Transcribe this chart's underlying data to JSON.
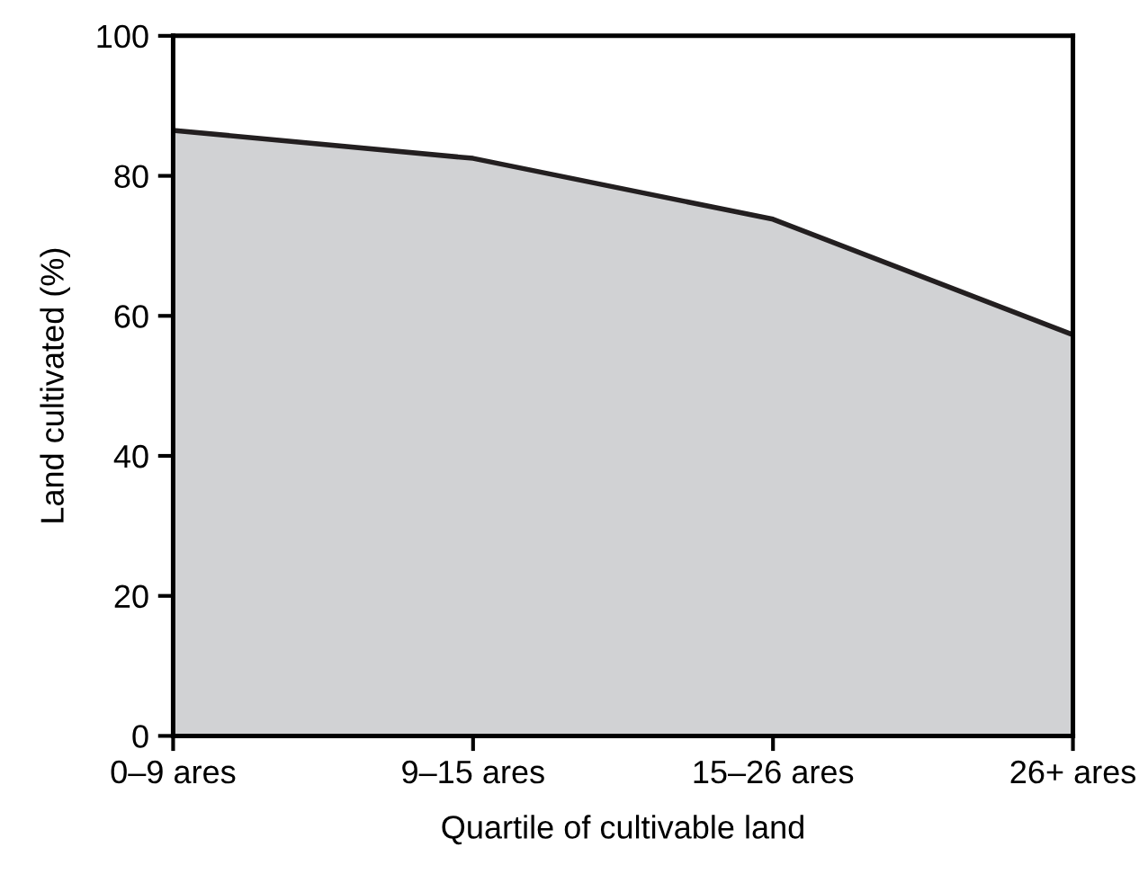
{
  "chart_data": {
    "type": "area",
    "xlabel": "Quartile of cultivable land",
    "ylabel": "Land cultivated (%)",
    "categories": [
      "0–9 ares",
      "9–15 ares",
      "15–26 ares",
      "26+ ares"
    ],
    "series": [
      {
        "color": "#d1d2d4",
        "values": [
          86.5,
          82.5,
          73.8,
          57.3
        ]
      }
    ],
    "ylim": [
      0,
      100
    ],
    "yticks": [
      0,
      20,
      40,
      60,
      80,
      100
    ],
    "grid": false,
    "legend": false
  }
}
